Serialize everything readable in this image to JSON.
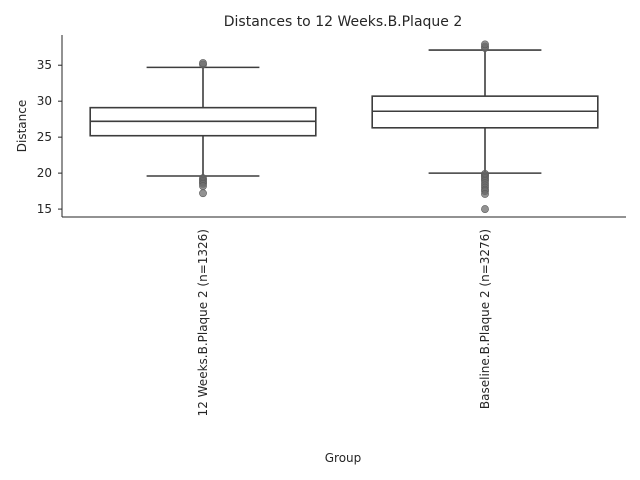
{
  "chart_data": {
    "type": "box",
    "title": "Distances to 12 Weeks.B.Plaque 2",
    "xlabel": "Group",
    "ylabel": "Distance",
    "ylim": [
      13.9,
      39.2
    ],
    "yticks": [
      15,
      20,
      25,
      30,
      35
    ],
    "grid": false,
    "categories": [
      "12 Weeks.B.Plaque 2 (n=1326)",
      "Baseline.B.Plaque 2 (n=3276)"
    ],
    "boxes": [
      {
        "whisker_low": 19.6,
        "q1": 25.2,
        "median": 27.2,
        "q3": 29.1,
        "whisker_high": 34.7,
        "outliers": [
          35.1,
          35.3,
          19.3,
          19.1,
          18.9,
          18.7,
          18.5,
          18.2,
          17.2
        ]
      },
      {
        "whisker_low": 20.0,
        "q1": 26.3,
        "median": 28.6,
        "q3": 30.7,
        "whisker_high": 37.1,
        "outliers": [
          37.4,
          37.6,
          37.9,
          19.9,
          19.7,
          19.5,
          19.3,
          19.1,
          18.9,
          18.6,
          18.3,
          18.0,
          17.7,
          17.5,
          17.1,
          15.0
        ]
      }
    ],
    "box_color": "#ffffff",
    "line_color": "#3d3d3d",
    "outlier_color": "#6e6e6e"
  }
}
